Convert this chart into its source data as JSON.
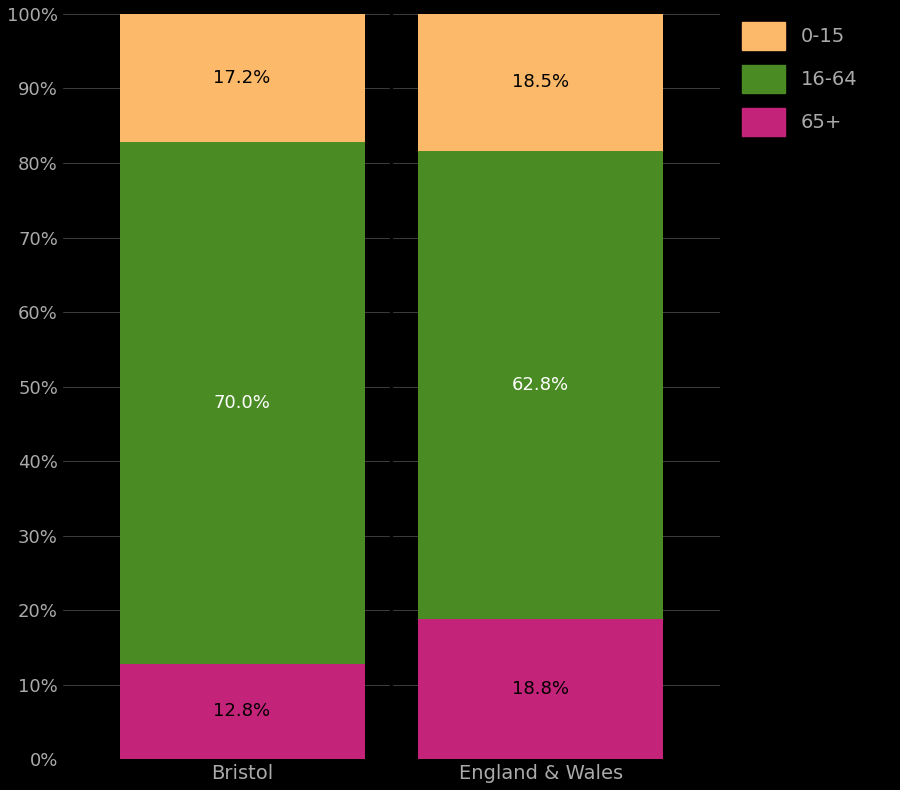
{
  "categories": [
    "Bristol",
    "England & Wales"
  ],
  "segments": {
    "65+": [
      12.8,
      18.8
    ],
    "16-64": [
      70.0,
      62.8
    ],
    "0-15": [
      17.2,
      18.5
    ]
  },
  "colors": {
    "0-15": "#FDB96A",
    "16-64": "#4A8C23",
    "65+": "#C4237A"
  },
  "yticks": [
    0,
    10,
    20,
    30,
    40,
    50,
    60,
    70,
    80,
    90,
    100
  ],
  "ylim": [
    0,
    100
  ],
  "background_color": "#000000",
  "tick_color": "#aaaaaa",
  "grid_color": "#555555",
  "bar_width": 0.82,
  "figsize": [
    9.0,
    7.9
  ],
  "dpi": 100
}
